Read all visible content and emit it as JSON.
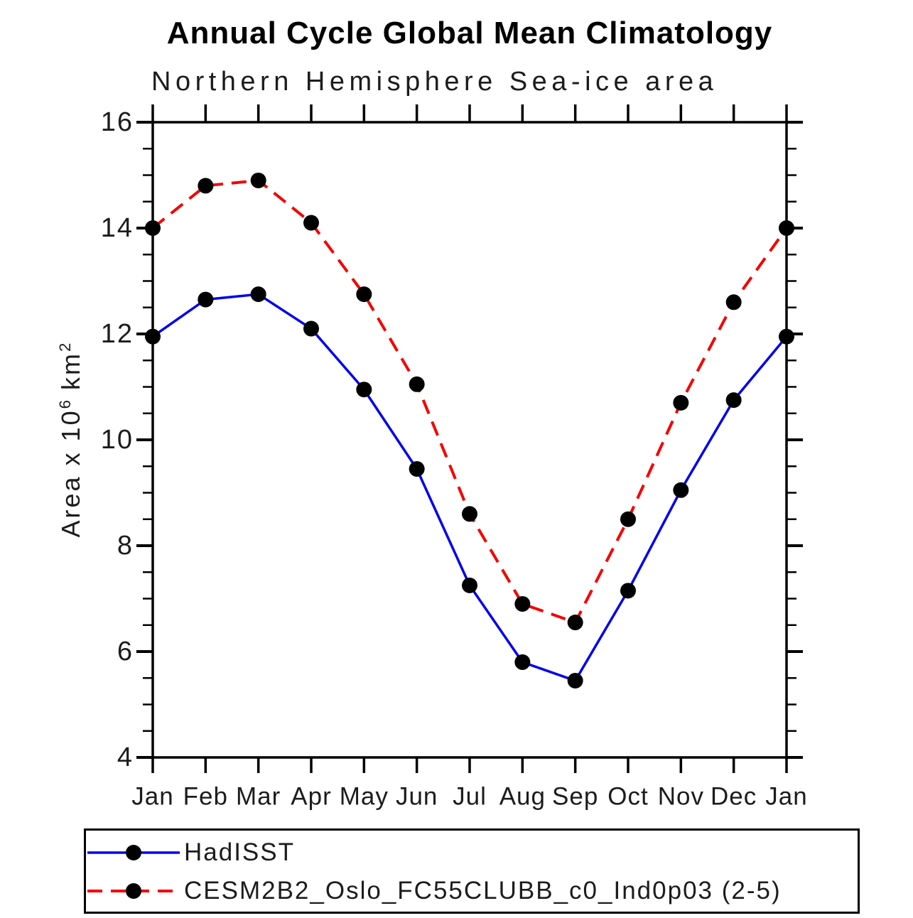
{
  "header": {
    "title": "Annual Cycle Global Mean Climatology",
    "subtitle": "Northern Hemisphere Sea-ice area"
  },
  "y_axis_label": {
    "prefix": "Area x 10",
    "sup1": "6",
    "mid": " km",
    "sup2": "2"
  },
  "chart_data": {
    "type": "line",
    "title": "Annual Cycle Global Mean Climatology",
    "subtitle": "Northern Hemisphere Sea-ice area",
    "ylabel": "Area x 10^6 km^2",
    "categories": [
      "Jan",
      "Feb",
      "Mar",
      "Apr",
      "May",
      "Jun",
      "Jul",
      "Aug",
      "Sep",
      "Oct",
      "Nov",
      "Dec",
      "Jan"
    ],
    "ylim": [
      4,
      16
    ],
    "ytick_major_step": 2,
    "ytick_minor_step": 0.5,
    "ytick_labels": [
      "4",
      "6",
      "8",
      "10",
      "12",
      "14",
      "16"
    ],
    "grid": false,
    "frame_color": "#000000",
    "legend_position": "bottom-left-box",
    "series": [
      {
        "name": "HadISST",
        "color": "#0000f0",
        "line_style": "solid",
        "marker": "filled-circle",
        "marker_color": "#000000",
        "values": [
          11.95,
          12.65,
          12.75,
          12.1,
          10.95,
          9.45,
          7.25,
          5.8,
          5.45,
          7.15,
          9.05,
          10.75,
          11.95
        ]
      },
      {
        "name": "CESM2B2_Oslo_FC55CLUBB_c0_Ind0p03 (2-5)",
        "color": "#f50000",
        "line_style": "dashed",
        "marker": "filled-circle",
        "marker_color": "#000000",
        "values": [
          14.0,
          14.8,
          14.9,
          14.1,
          12.75,
          11.05,
          8.6,
          6.9,
          6.55,
          8.5,
          10.7,
          12.6,
          14.0
        ]
      }
    ]
  }
}
